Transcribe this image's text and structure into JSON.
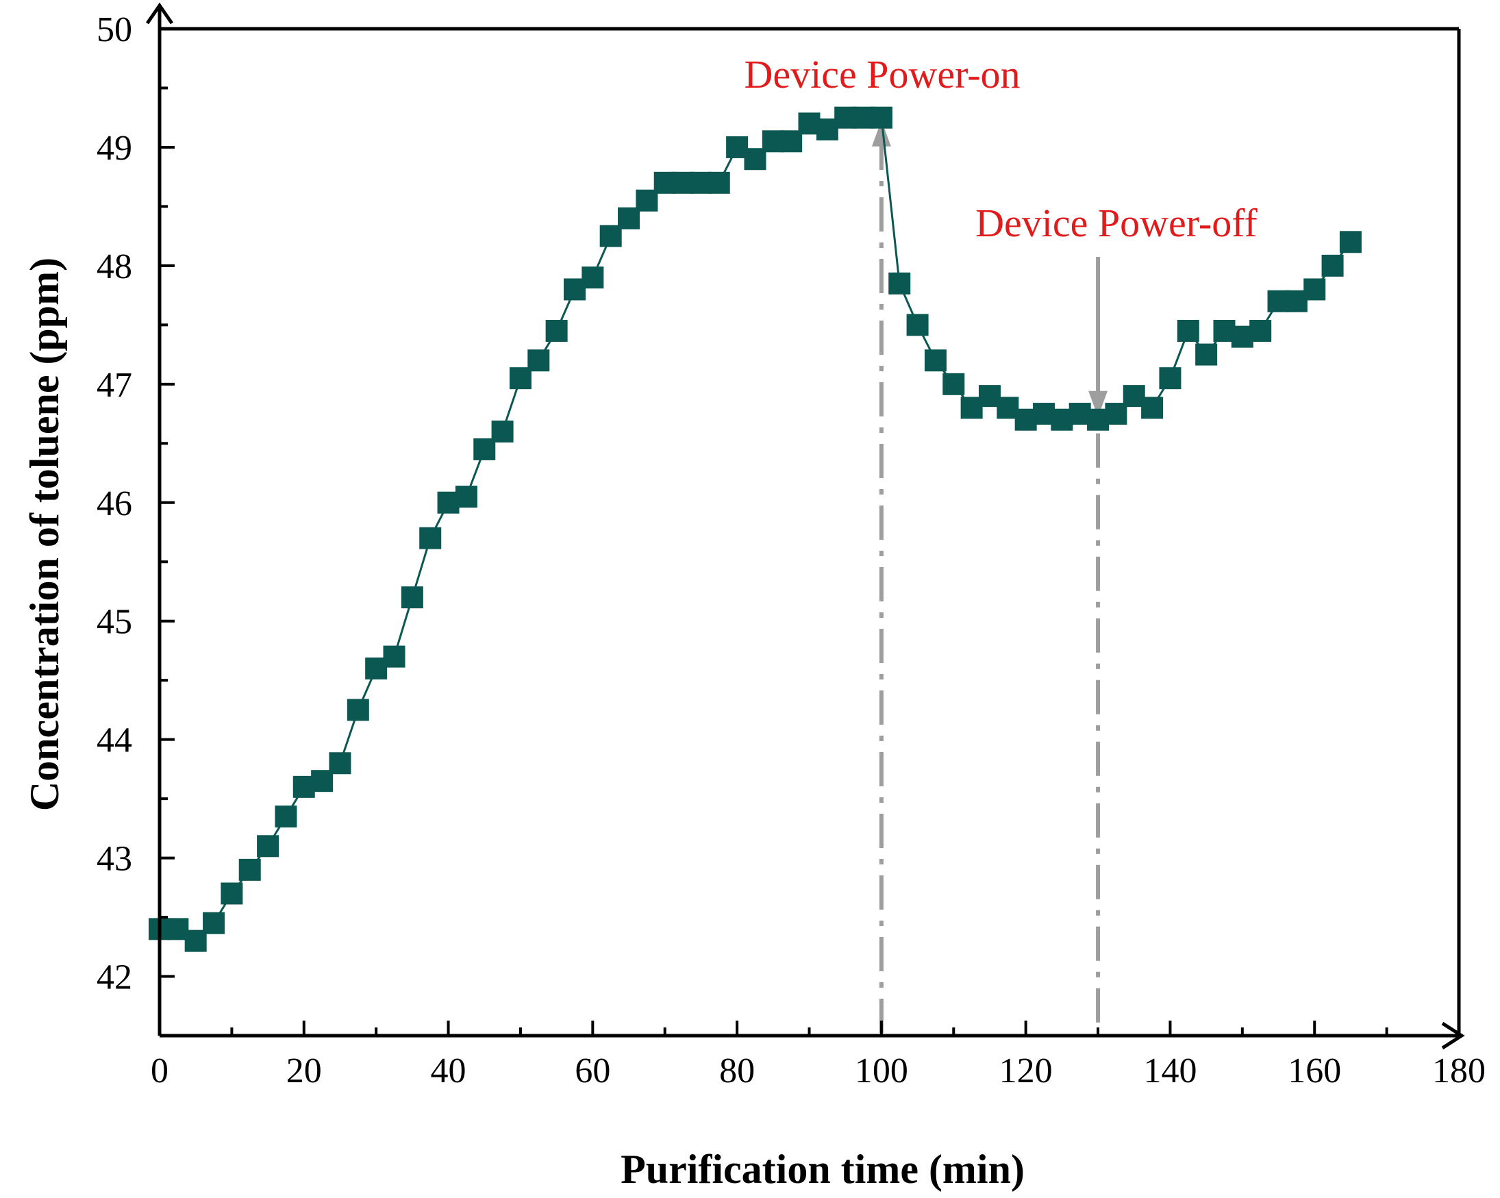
{
  "colors": {
    "series": "#0b5752",
    "annotation_text": "#e11b1b",
    "marker_line": "#9e9e9e",
    "axis": "#000000"
  },
  "chart_data": {
    "type": "scatter",
    "title": "",
    "xlabel": "Purification time (min)",
    "ylabel": "Concentration of toluene (ppm)",
    "xlim": [
      0,
      180
    ],
    "ylim": [
      41.5,
      50
    ],
    "xticks": [
      0,
      20,
      40,
      60,
      80,
      100,
      120,
      140,
      160,
      180
    ],
    "yticks": [
      42,
      43,
      44,
      45,
      46,
      47,
      48,
      49,
      50
    ],
    "grid": false,
    "legend": "none",
    "marker": "square",
    "series": [
      {
        "x": [
          0,
          2.5,
          5,
          7.5,
          10,
          12.5,
          15,
          17.5,
          20,
          22.5,
          25,
          27.5,
          30,
          32.5,
          35,
          37.5,
          40,
          42.5,
          45,
          47.5,
          50,
          52.5,
          55,
          57.5,
          60,
          62.5,
          65,
          67.5,
          70,
          72.5,
          75,
          77.5,
          80,
          82.5,
          85,
          87.5,
          90,
          92.5,
          95,
          97.5,
          100,
          102.5,
          105,
          107.5,
          110,
          112.5,
          115,
          117.5,
          120,
          122.5,
          125,
          127.5,
          130,
          132.5,
          135,
          137.5,
          140,
          142.5,
          145,
          147.5,
          150,
          152.5,
          155,
          157.5,
          160,
          162.5,
          165
        ],
        "y": [
          42.4,
          42.4,
          42.3,
          42.45,
          42.7,
          42.9,
          43.1,
          43.35,
          43.6,
          43.65,
          43.8,
          44.25,
          44.6,
          44.7,
          45.2,
          45.7,
          46.0,
          46.05,
          46.45,
          46.6,
          47.05,
          47.2,
          47.45,
          47.8,
          47.9,
          48.25,
          48.4,
          48.55,
          48.7,
          48.7,
          48.7,
          48.7,
          49.0,
          48.9,
          49.05,
          49.05,
          49.2,
          49.15,
          49.25,
          49.25,
          49.25,
          47.85,
          47.5,
          47.2,
          47.0,
          46.8,
          46.9,
          46.8,
          46.7,
          46.75,
          46.7,
          46.75,
          46.7,
          46.75,
          46.9,
          46.8,
          47.05,
          47.45,
          47.25,
          47.45,
          47.4,
          47.45,
          47.7,
          47.7,
          47.8,
          48.0,
          48.2
        ]
      }
    ],
    "annotations": [
      {
        "text": "Device Power-on",
        "x": 100
      },
      {
        "text": "Device Power-off",
        "x": 130
      }
    ]
  }
}
